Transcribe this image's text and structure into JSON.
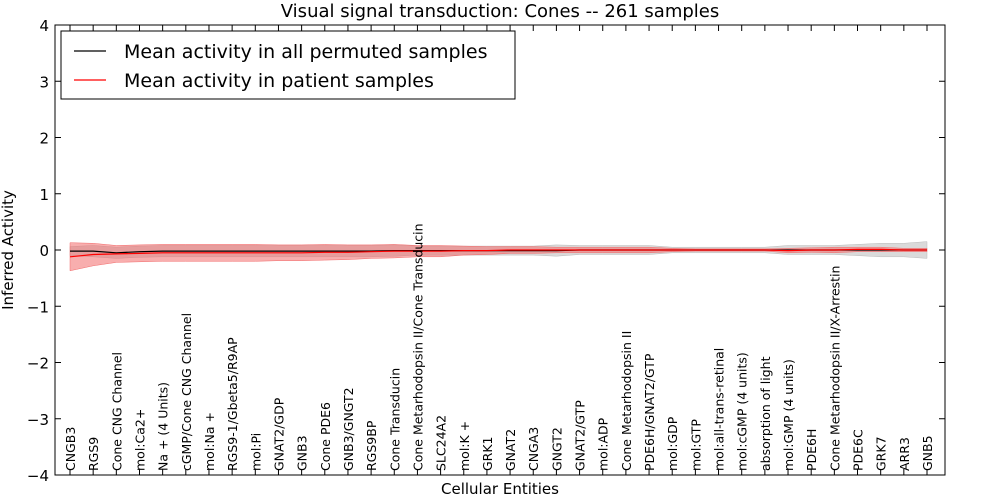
{
  "chart_data": {
    "type": "line",
    "title": "Visual signal transduction: Cones -- 261 samples",
    "xlabel": "Cellular Entities",
    "ylabel": "Inferred Activity",
    "ylim": [
      -4,
      4
    ],
    "yticks": [
      4,
      3,
      2,
      1,
      0,
      -1,
      -2,
      -3,
      -4
    ],
    "ytick_labels": [
      "4",
      "3",
      "2",
      "1",
      "0",
      "−1",
      "−2",
      "−3",
      "−4"
    ],
    "legend_position": "top-left",
    "categories": [
      "CNGB3",
      "RGS9",
      "Cone CNG Channel",
      "mol:Ca2+",
      "Na + (4 Units)",
      "cGMP/Cone CNG Channel",
      "mol:Na +",
      "RGS9-1/Gbeta5/R9AP",
      "mol:Pi",
      "GNAT2/GDP",
      "GNB3",
      "Cone PDE6",
      "GNB3/GNGT2",
      "RGS9BP",
      "Cone Transducin",
      "Cone Metarhodopsin II/Cone Transducin",
      "SLC24A2",
      "mol:K +",
      "GRK1",
      "GNAT2",
      "CNGA3",
      "GNGT2",
      "GNAT2/GTP",
      "mol:ADP",
      "Cone Metarhodopsin II",
      "PDE6H/GNAT2/GTP",
      "mol:GDP",
      "mol:GTP",
      "mol:all-trans-retinal",
      "mol:cGMP (4 units)",
      "absorption of light",
      "mol:GMP (4 units)",
      "PDE6H",
      "Cone Metarhodopsin II/X-Arrestin",
      "PDE6C",
      "GRK7",
      "ARR3",
      "GNB5"
    ],
    "series": [
      {
        "name": "Mean activity in all permuted samples",
        "color": "#000000",
        "band_color": "#bbbbbb",
        "values": [
          -0.02,
          -0.02,
          -0.05,
          -0.03,
          -0.02,
          -0.02,
          -0.02,
          -0.02,
          -0.02,
          -0.02,
          -0.02,
          -0.02,
          -0.02,
          -0.02,
          -0.01,
          -0.01,
          -0.01,
          -0.01,
          -0.01,
          -0.01,
          -0.01,
          -0.01,
          0,
          0,
          0,
          0,
          0,
          0,
          0,
          0,
          0,
          0,
          0,
          0,
          0,
          0,
          0,
          0
        ],
        "band": [
          0.08,
          0.1,
          0.1,
          0.1,
          0.1,
          0.1,
          0.1,
          0.1,
          0.1,
          0.1,
          0.1,
          0.1,
          0.1,
          0.1,
          0.1,
          0.08,
          0.08,
          0.08,
          0.08,
          0.08,
          0.08,
          0.1,
          0.08,
          0.08,
          0.08,
          0.08,
          0.05,
          0.05,
          0.05,
          0.05,
          0.05,
          0.08,
          0.08,
          0.08,
          0.1,
          0.12,
          0.12,
          0.15
        ]
      },
      {
        "name": "Mean activity in patient samples",
        "color": "#ff0000",
        "band_color": "#f26b6b",
        "values": [
          -0.12,
          -0.08,
          -0.07,
          -0.06,
          -0.05,
          -0.05,
          -0.05,
          -0.05,
          -0.05,
          -0.05,
          -0.05,
          -0.04,
          -0.04,
          -0.03,
          -0.02,
          -0.02,
          -0.02,
          -0.01,
          -0.01,
          0,
          0,
          0,
          0,
          0,
          0,
          0,
          0,
          0,
          0,
          0,
          0,
          -0.01,
          0,
          0,
          0.01,
          0.01,
          0,
          0
        ],
        "band": [
          0.25,
          0.2,
          0.15,
          0.15,
          0.15,
          0.15,
          0.15,
          0.15,
          0.15,
          0.14,
          0.14,
          0.14,
          0.13,
          0.12,
          0.12,
          0.1,
          0.1,
          0.08,
          0.07,
          0.06,
          0.06,
          0.05,
          0.05,
          0.05,
          0.05,
          0.05,
          0.03,
          0.02,
          0.02,
          0.02,
          0.02,
          0.04,
          0.04,
          0.05,
          0.04,
          0.04,
          0.03,
          0.03
        ]
      }
    ]
  }
}
